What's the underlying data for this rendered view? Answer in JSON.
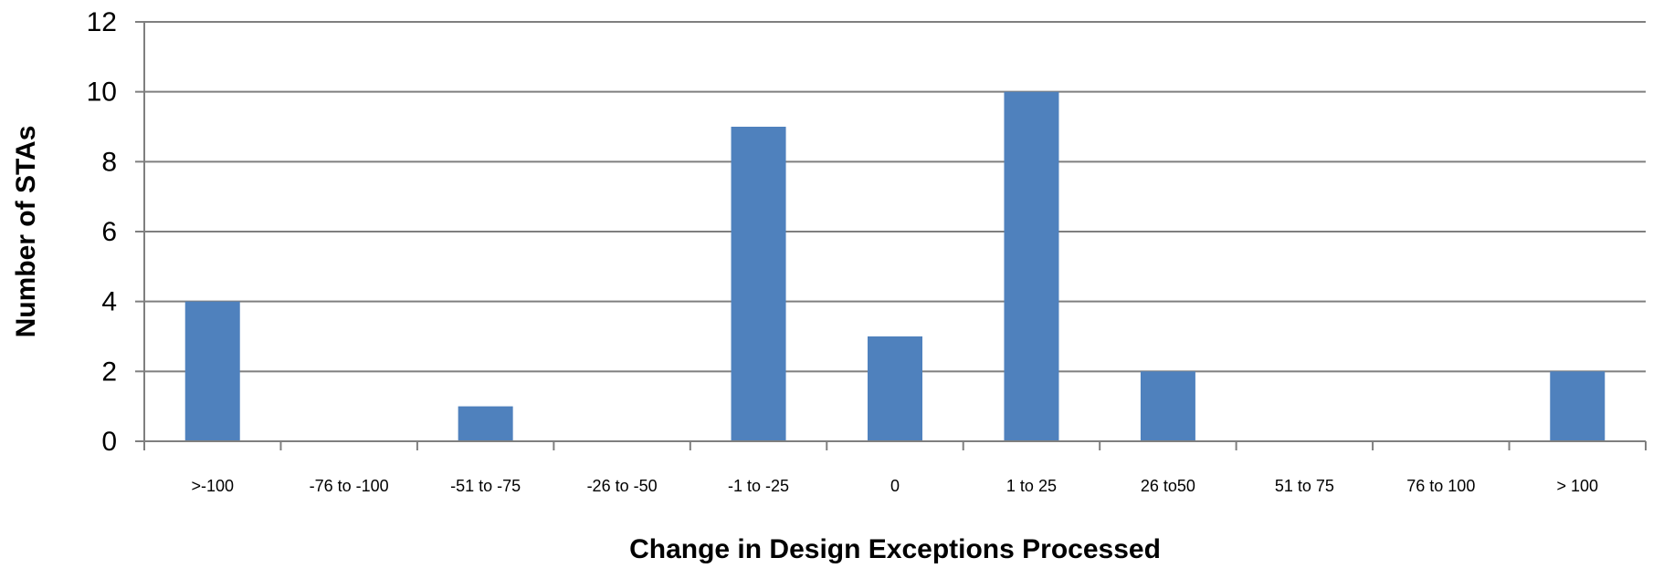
{
  "chart_data": {
    "type": "bar",
    "title": "",
    "xlabel": "Change in Design Exceptions Processed",
    "ylabel": "Number of STAs",
    "categories": [
      ">-100",
      "-76 to -100",
      "-51 to -75",
      "-26 to -50",
      "-1 to -25",
      "0",
      "1 to 25",
      "26 to50",
      "51 to 75",
      "76 to 100",
      "> 100"
    ],
    "values": [
      4,
      0,
      1,
      0,
      9,
      3,
      10,
      2,
      0,
      0,
      2
    ],
    "ylim": [
      0,
      12
    ],
    "yticks": [
      0,
      2,
      4,
      6,
      8,
      10,
      12
    ],
    "grid": true,
    "legend": "none",
    "colors": {
      "bar": "#4F81BD",
      "grid": "#7F7F7F",
      "axis": "#7F7F7F"
    }
  }
}
